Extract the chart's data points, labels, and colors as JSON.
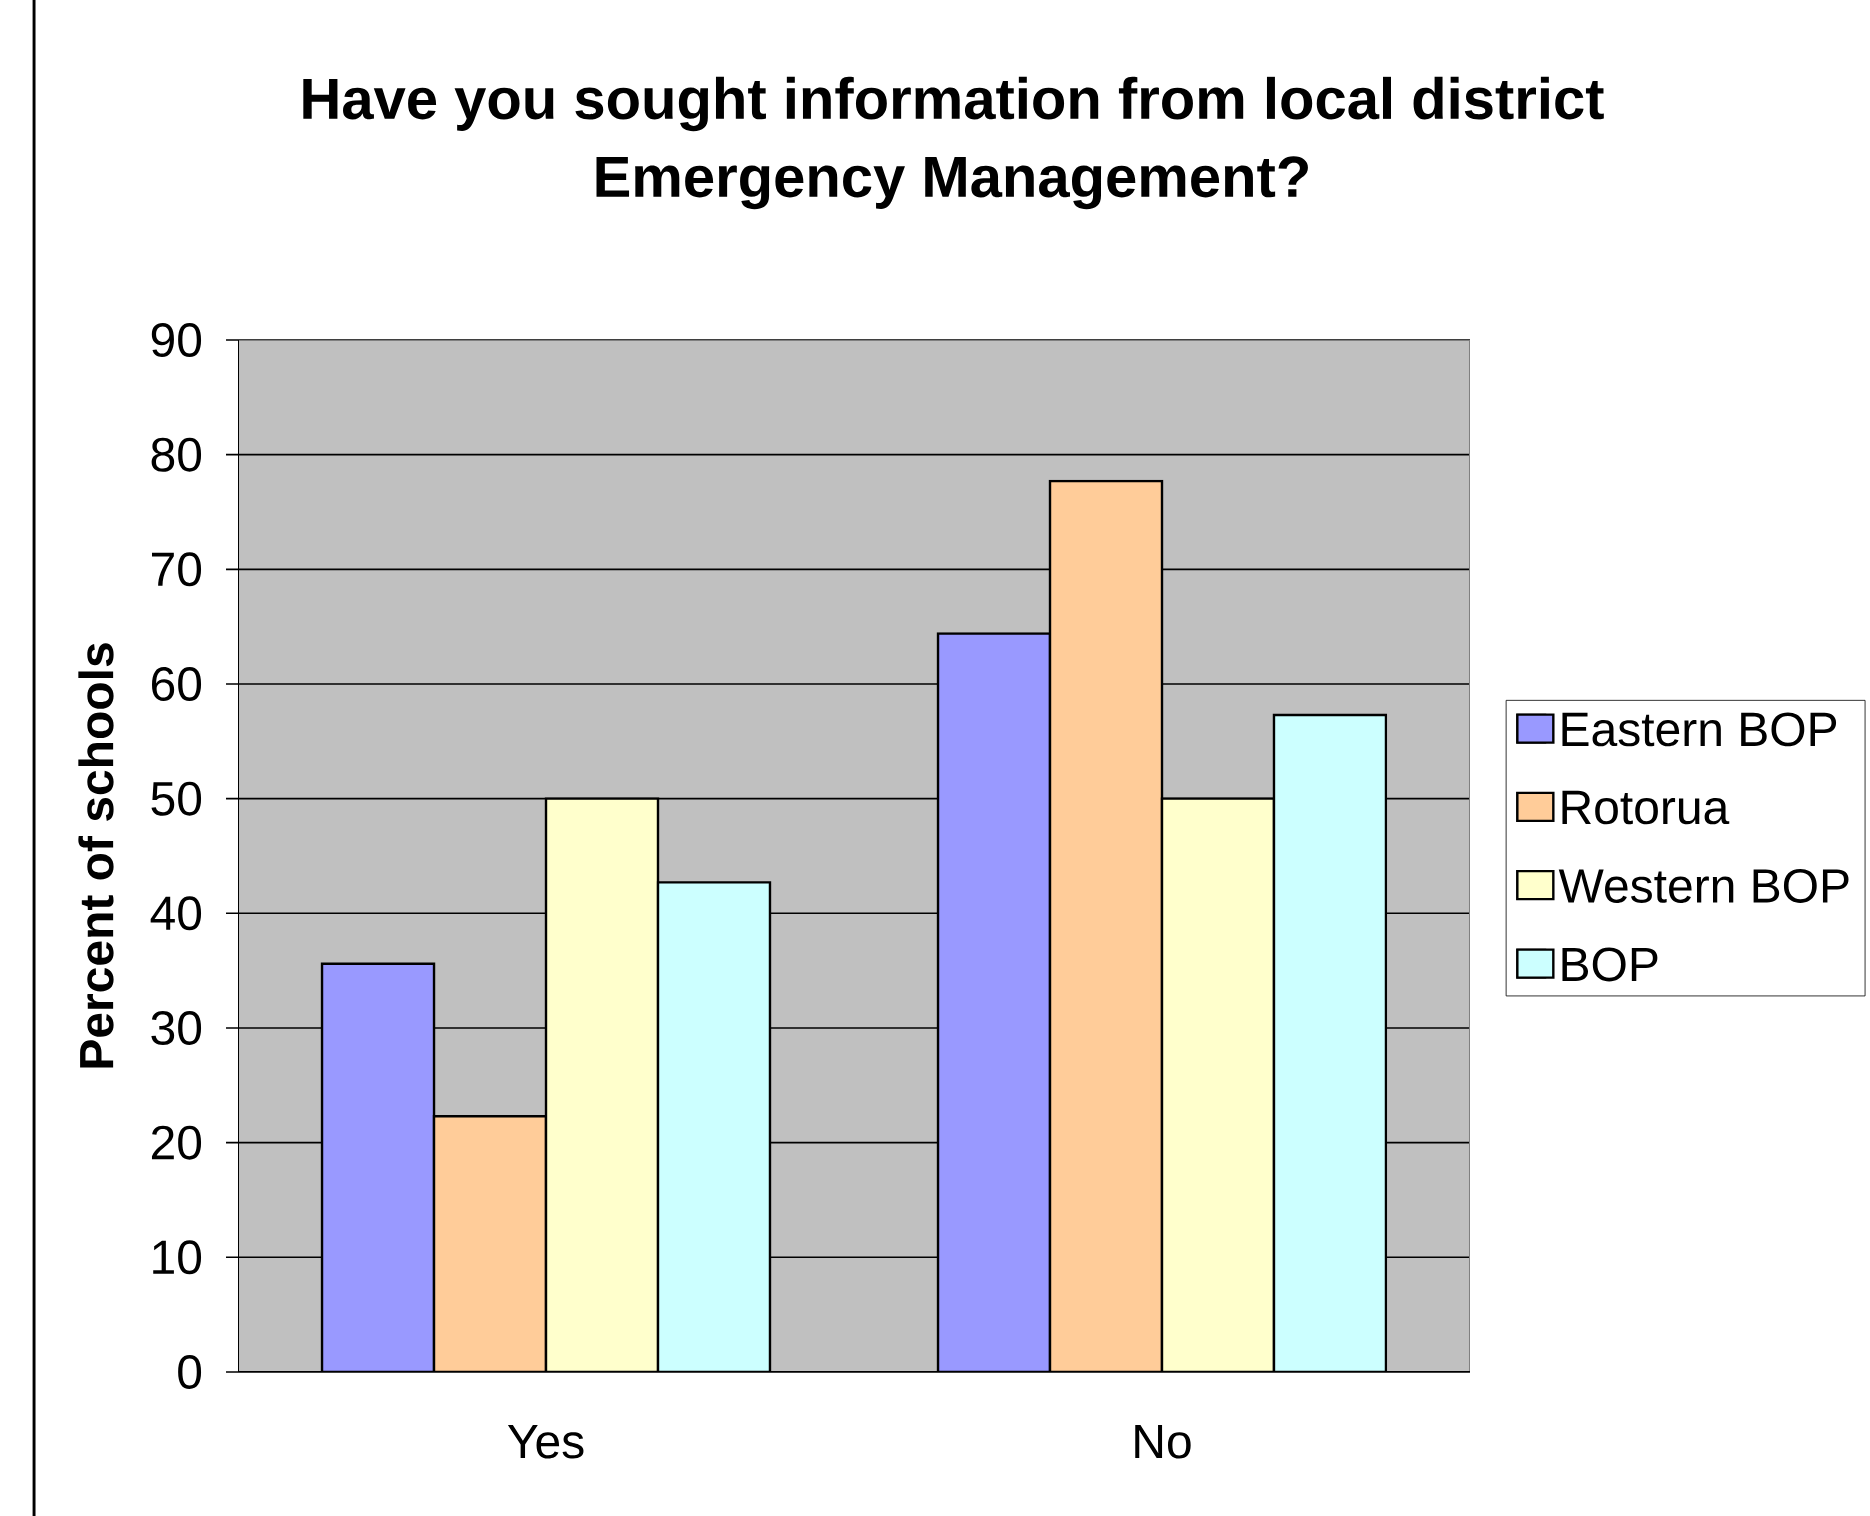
{
  "chart_data": {
    "type": "bar",
    "title": "Have you sought information from local district Emergency Management?",
    "ylabel": "Percent of schools",
    "categories": [
      "Yes",
      "No"
    ],
    "series": [
      {
        "name": "Eastern BOP",
        "color": "#9999ff",
        "values": [
          35.6,
          64.4
        ]
      },
      {
        "name": "Rotorua",
        "color": "#ffcc99",
        "values": [
          22.3,
          77.7
        ]
      },
      {
        "name": "Western BOP",
        "color": "#ffffcc",
        "values": [
          50,
          50
        ]
      },
      {
        "name": "BOP",
        "color": "#ccffff",
        "values": [
          42.7,
          57.3
        ]
      }
    ],
    "ylim": [
      0,
      90
    ],
    "yticks": [
      0,
      10,
      20,
      30,
      40,
      50,
      60,
      70,
      80,
      90
    ],
    "grid": "y",
    "legend": "right"
  }
}
